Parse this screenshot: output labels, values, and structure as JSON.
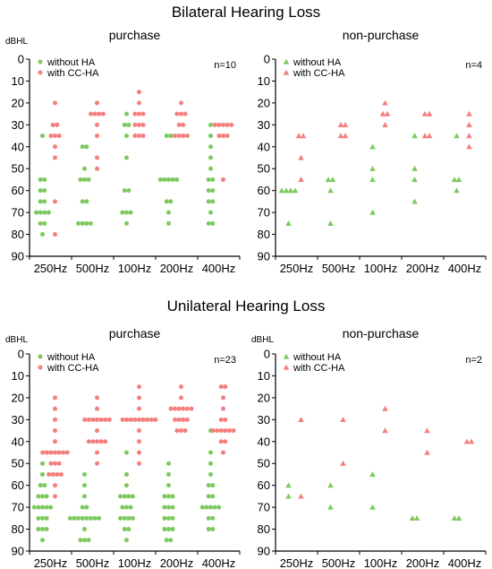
{
  "sections": [
    {
      "title": "Bilateral Hearing Loss",
      "panels": [
        {
          "title": "purchase",
          "n_label": "n=10",
          "marker": "circle",
          "unit_label": "dBHL",
          "legend": [
            "without HA",
            "with CC-HA"
          ],
          "points": [
            {
              "cat": 0,
              "series": 0,
              "y": [
                35,
                55,
                55,
                60,
                60,
                65,
                65,
                70,
                70,
                70,
                70,
                75,
                75,
                80
              ]
            },
            {
              "cat": 0,
              "series": 1,
              "y": [
                20,
                30,
                30,
                35,
                35,
                35,
                40,
                45,
                65,
                80
              ]
            },
            {
              "cat": 1,
              "series": 0,
              "y": [
                40,
                40,
                50,
                55,
                55,
                55,
                65,
                65,
                75,
                75,
                75,
                75
              ]
            },
            {
              "cat": 1,
              "series": 1,
              "y": [
                20,
                25,
                25,
                25,
                25,
                30,
                35,
                45,
                50
              ]
            },
            {
              "cat": 2,
              "series": 0,
              "y": [
                25,
                30,
                30,
                35,
                45,
                60,
                60,
                70,
                70,
                70,
                75
              ]
            },
            {
              "cat": 2,
              "series": 1,
              "y": [
                15,
                20,
                25,
                25,
                25,
                30,
                30,
                30,
                35,
                35,
                35
              ]
            },
            {
              "cat": 3,
              "series": 0,
              "y": [
                35,
                35,
                55,
                55,
                55,
                55,
                55,
                65,
                65,
                70,
                75
              ]
            },
            {
              "cat": 3,
              "series": 1,
              "y": [
                20,
                25,
                25,
                25,
                30,
                30,
                35,
                35,
                35,
                35
              ]
            },
            {
              "cat": 4,
              "series": 0,
              "y": [
                30,
                35,
                40,
                45,
                50,
                55,
                55,
                60,
                60,
                65,
                65,
                70,
                75,
                75
              ]
            },
            {
              "cat": 4,
              "series": 1,
              "y": [
                30,
                30,
                30,
                30,
                30,
                35,
                35,
                35,
                55
              ]
            }
          ]
        },
        {
          "title": "non-purchase",
          "n_label": "n=4",
          "marker": "triangle",
          "unit_label": "",
          "legend": [
            "without HA",
            "with CC-HA"
          ],
          "points": [
            {
              "cat": 0,
              "series": 0,
              "y": [
                60,
                60,
                60,
                60,
                75
              ]
            },
            {
              "cat": 0,
              "series": 1,
              "y": [
                35,
                35,
                45,
                55
              ]
            },
            {
              "cat": 1,
              "series": 0,
              "y": [
                55,
                55,
                60,
                75
              ]
            },
            {
              "cat": 1,
              "series": 1,
              "y": [
                30,
                30,
                35,
                35
              ]
            },
            {
              "cat": 2,
              "series": 0,
              "y": [
                40,
                50,
                55,
                70
              ]
            },
            {
              "cat": 2,
              "series": 1,
              "y": [
                20,
                25,
                25,
                30
              ]
            },
            {
              "cat": 3,
              "series": 0,
              "y": [
                35,
                50,
                55,
                65
              ]
            },
            {
              "cat": 3,
              "series": 1,
              "y": [
                25,
                25,
                35,
                35
              ]
            },
            {
              "cat": 4,
              "series": 0,
              "y": [
                35,
                55,
                55,
                60
              ]
            },
            {
              "cat": 4,
              "series": 1,
              "y": [
                25,
                30,
                35,
                40
              ]
            }
          ]
        }
      ]
    },
    {
      "title": "Unilateral Hearing Loss",
      "panels": [
        {
          "title": "purchase",
          "n_label": "n=23",
          "marker": "circle",
          "unit_label": "dBHL",
          "legend": [
            "without HA",
            "with CC-HA"
          ],
          "points": [
            {
              "cat": 0,
              "series": 0,
              "y": [
                50,
                55,
                60,
                60,
                65,
                65,
                65,
                70,
                70,
                70,
                70,
                70,
                75,
                75,
                75,
                80,
                80,
                80,
                85
              ]
            },
            {
              "cat": 0,
              "series": 1,
              "y": [
                20,
                25,
                30,
                35,
                40,
                45,
                45,
                45,
                45,
                45,
                45,
                45,
                50,
                50,
                50,
                55,
                55,
                55,
                55,
                60,
                65
              ]
            },
            {
              "cat": 1,
              "series": 0,
              "y": [
                55,
                60,
                65,
                70,
                70,
                75,
                75,
                75,
                75,
                75,
                75,
                75,
                75,
                80,
                85,
                85,
                85
              ]
            },
            {
              "cat": 1,
              "series": 1,
              "y": [
                20,
                25,
                30,
                30,
                30,
                30,
                30,
                30,
                30,
                35,
                40,
                40,
                40,
                40,
                40,
                45,
                50
              ]
            },
            {
              "cat": 2,
              "series": 0,
              "y": [
                45,
                55,
                60,
                65,
                65,
                65,
                65,
                70,
                70,
                70,
                75,
                75,
                75,
                75,
                80,
                80,
                85
              ]
            },
            {
              "cat": 2,
              "series": 1,
              "y": [
                15,
                20,
                25,
                30,
                30,
                30,
                30,
                30,
                30,
                30,
                30,
                30,
                35,
                40,
                45,
                50
              ]
            },
            {
              "cat": 3,
              "series": 0,
              "y": [
                50,
                55,
                60,
                65,
                65,
                65,
                70,
                70,
                70,
                75,
                75,
                75,
                80,
                80,
                80,
                85,
                85
              ]
            },
            {
              "cat": 3,
              "series": 1,
              "y": [
                15,
                20,
                25,
                25,
                25,
                25,
                25,
                25,
                30,
                30,
                30,
                30,
                35,
                35,
                35
              ]
            },
            {
              "cat": 4,
              "series": 0,
              "y": [
                35,
                45,
                50,
                55,
                60,
                60,
                65,
                65,
                70,
                70,
                70,
                70,
                70,
                75,
                75,
                80,
                80
              ]
            },
            {
              "cat": 4,
              "series": 1,
              "y": [
                15,
                15,
                20,
                25,
                30,
                30,
                35,
                35,
                35,
                35,
                35,
                35,
                40,
                40,
                45
              ]
            }
          ]
        },
        {
          "title": "non-purchase",
          "n_label": "n=2",
          "marker": "triangle",
          "unit_label": "dBHL",
          "legend": [
            "without HA",
            "with CC-HA"
          ],
          "points": [
            {
              "cat": 0,
              "series": 0,
              "y": [
                60,
                65
              ]
            },
            {
              "cat": 0,
              "series": 1,
              "y": [
                30,
                65
              ]
            },
            {
              "cat": 1,
              "series": 0,
              "y": [
                60,
                70
              ]
            },
            {
              "cat": 1,
              "series": 1,
              "y": [
                30,
                50
              ]
            },
            {
              "cat": 2,
              "series": 0,
              "y": [
                55,
                70
              ]
            },
            {
              "cat": 2,
              "series": 1,
              "y": [
                25,
                35
              ]
            },
            {
              "cat": 3,
              "series": 0,
              "y": [
                75,
                75
              ]
            },
            {
              "cat": 3,
              "series": 1,
              "y": [
                35,
                45
              ]
            },
            {
              "cat": 4,
              "series": 0,
              "y": [
                75,
                75
              ]
            },
            {
              "cat": 4,
              "series": 1,
              "y": [
                40,
                40
              ]
            }
          ]
        }
      ]
    }
  ],
  "chart_data": {
    "type": "scatter",
    "categories": [
      "250Hz",
      "500Hz",
      "100Hz",
      "200Hz",
      "400Hz"
    ],
    "ylabel": "dBHL",
    "ylim": [
      0,
      90
    ],
    "y_inverted": true,
    "yticks": [
      0,
      10,
      20,
      30,
      40,
      50,
      60,
      70,
      80,
      90
    ],
    "series": [
      {
        "name": "without HA",
        "color": "#7dc95e"
      },
      {
        "name": "with CC-HA",
        "color": "#f47f7f"
      }
    ],
    "legend_position": "top-left",
    "grid": false
  },
  "colors": {
    "without_ha": "#7dc95e",
    "with_cc_ha": "#f47f7f",
    "overlap": "#f0a040",
    "axis": "#000000"
  }
}
